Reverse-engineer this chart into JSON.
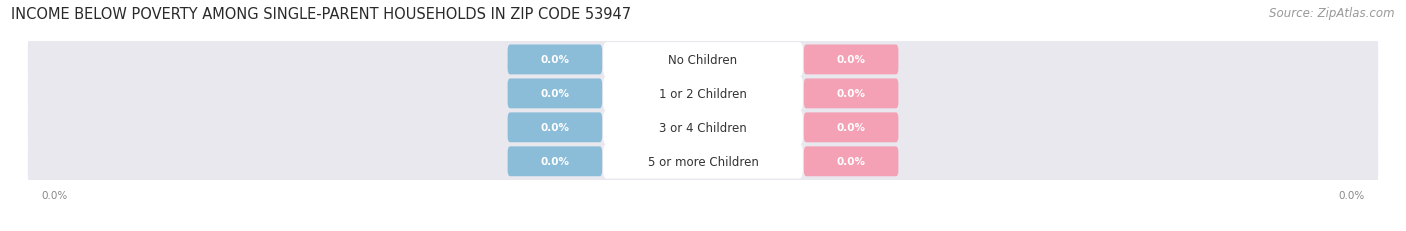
{
  "title": "INCOME BELOW POVERTY AMONG SINGLE-PARENT HOUSEHOLDS IN ZIP CODE 53947",
  "source": "Source: ZipAtlas.com",
  "categories": [
    "No Children",
    "1 or 2 Children",
    "3 or 4 Children",
    "5 or more Children"
  ],
  "father_values": [
    0.0,
    0.0,
    0.0,
    0.0
  ],
  "mother_values": [
    0.0,
    0.0,
    0.0,
    0.0
  ],
  "father_color": "#8bbdd9",
  "mother_color": "#f4a0b5",
  "bg_bar_color": "#e8e8ee",
  "title_fontsize": 10.5,
  "source_fontsize": 8.5,
  "label_fontsize": 7.5,
  "category_fontsize": 8.5,
  "legend_fontsize": 8.5,
  "value_label_color": "#ffffff",
  "category_label_color": "#333333",
  "axis_label_color": "#888888",
  "background_color": "#ffffff"
}
